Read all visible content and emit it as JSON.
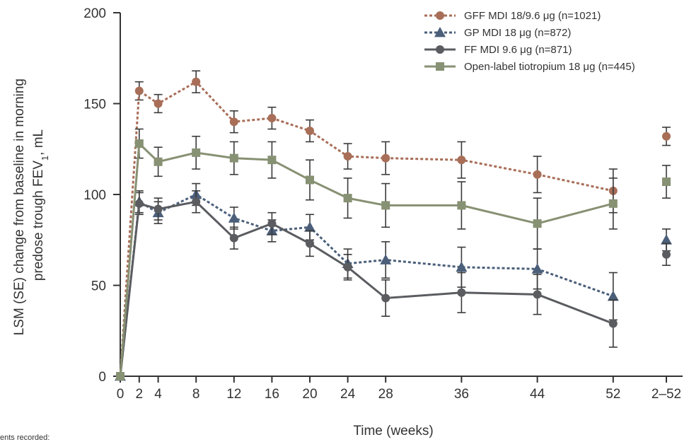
{
  "chart_data": {
    "type": "line",
    "xlabel": "Time (weeks)",
    "ylabel_line1": "LSM (SE) change from baseline in morning",
    "ylabel_line2": "predose trough FEV",
    "ylabel_sub": "1",
    "ylabel_suffix": ", mL",
    "ylim": [
      0,
      200
    ],
    "yticks": [
      "0",
      "50",
      "100",
      "150",
      "200"
    ],
    "xticks": [
      "0",
      "2",
      "4",
      "8",
      "12",
      "16",
      "20",
      "24",
      "28",
      "36",
      "44",
      "52",
      "2–52"
    ],
    "x": [
      0,
      2,
      4,
      8,
      12,
      16,
      20,
      24,
      28,
      36,
      44,
      52
    ],
    "summary_category": "2–52",
    "legend_position": "top-right",
    "grid": false,
    "series": [
      {
        "name": "GFF MDI 18/9.6 μg (n=1021)",
        "color": "#a86e58",
        "dash": "dotted",
        "marker": "circle",
        "values": [
          0,
          157,
          150,
          162,
          140,
          142,
          135,
          121,
          120,
          119,
          111,
          102
        ],
        "errors": [
          0,
          5,
          5,
          6,
          6,
          6,
          6,
          7,
          9,
          10,
          10,
          12
        ],
        "summary": {
          "value": 132,
          "error": 5
        }
      },
      {
        "name": "GP MDI 18 μg (n=872)",
        "color": "#4b5f7a",
        "dash": "dotted",
        "marker": "triangle",
        "values": [
          0,
          96,
          90,
          100,
          87,
          80,
          82,
          62,
          64,
          60,
          59,
          44
        ],
        "errors": [
          0,
          6,
          6,
          6,
          6,
          6,
          7,
          8,
          10,
          11,
          11,
          13
        ],
        "summary": {
          "value": 75,
          "error": 6
        }
      },
      {
        "name": "FF MDI 9.6 μg (n=871)",
        "color": "#5a5c60",
        "dash": "solid",
        "marker": "circle",
        "values": [
          0,
          95,
          92,
          96,
          76,
          84,
          73,
          60,
          43,
          46,
          45,
          29
        ],
        "errors": [
          0,
          6,
          6,
          6,
          6,
          6,
          7,
          7,
          10,
          11,
          11,
          13
        ],
        "summary": {
          "value": 67,
          "error": 6
        }
      },
      {
        "name": "Open-label tiotropium 18 μg (n=445)",
        "color": "#879173",
        "dash": "solid",
        "marker": "square",
        "values": [
          0,
          128,
          118,
          123,
          120,
          119,
          108,
          98,
          94,
          94,
          84,
          95
        ],
        "errors": [
          0,
          8,
          8,
          9,
          9,
          10,
          11,
          11,
          12,
          13,
          14,
          14
        ],
        "summary": {
          "value": 107,
          "error": 9
        }
      }
    ]
  },
  "footnote": "ents recorded:"
}
